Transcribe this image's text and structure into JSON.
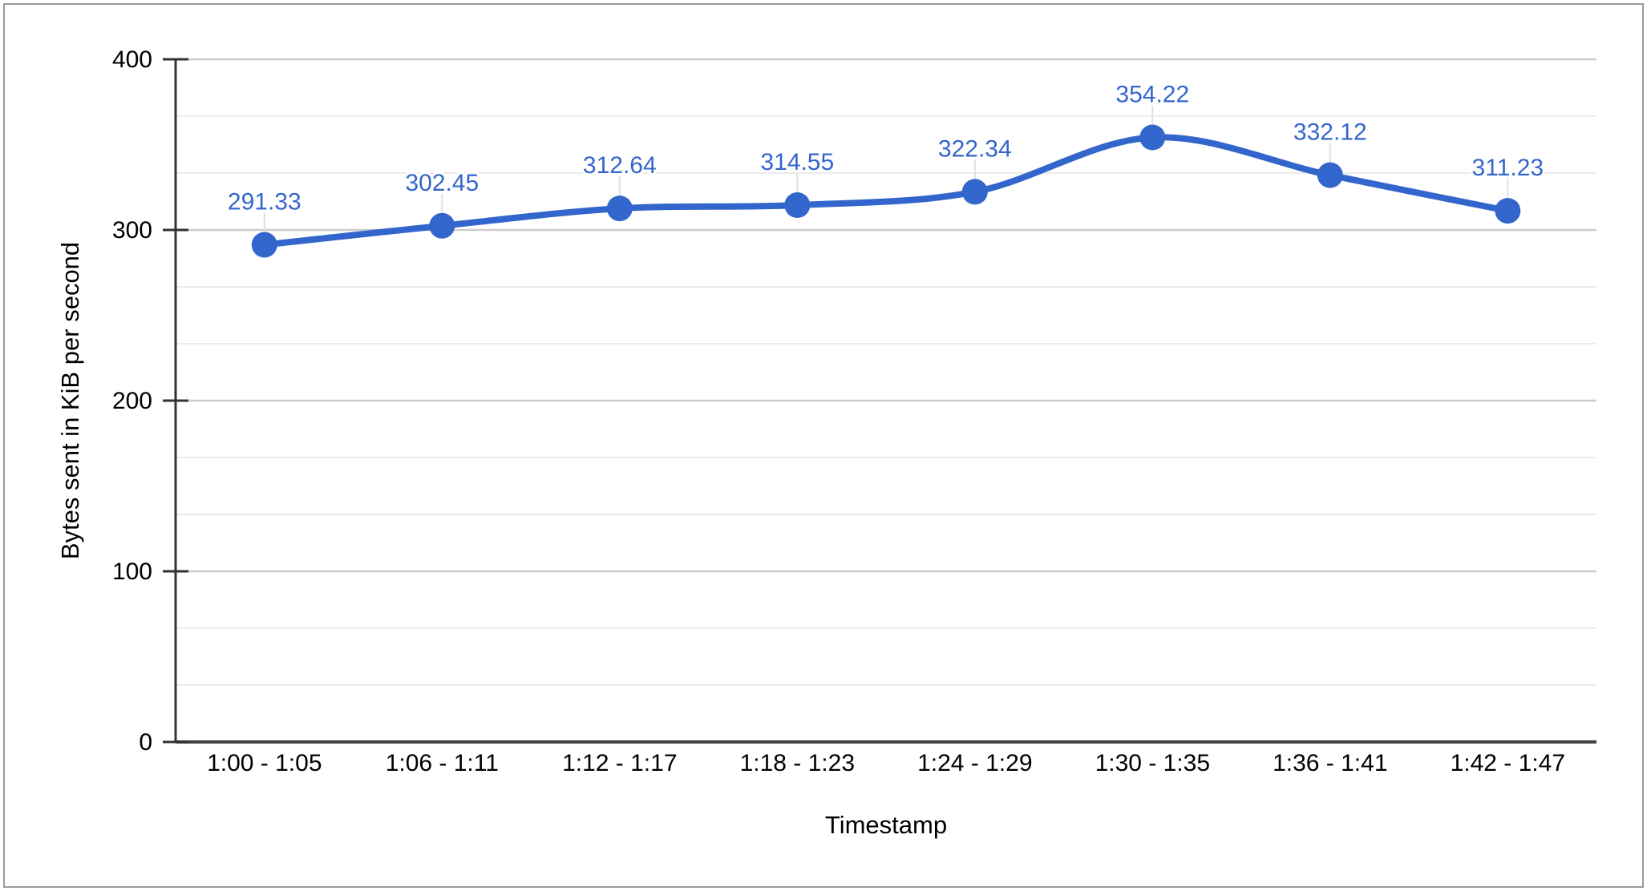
{
  "chart_data": {
    "type": "line",
    "title": "",
    "categories": [
      "1:00 - 1:05",
      "1:06 - 1:11",
      "1:12 - 1:17",
      "1:18 - 1:23",
      "1:24 - 1:29",
      "1:30 - 1:35",
      "1:36 - 1:41",
      "1:42 - 1:47"
    ],
    "values": [
      291.33,
      302.45,
      312.64,
      314.55,
      322.34,
      354.22,
      332.12,
      311.23
    ],
    "data_labels": [
      "291.33",
      "302.45",
      "312.64",
      "314.55",
      "322.34",
      "354.22",
      "332.12",
      "311.23"
    ],
    "xlabel": "Timestamp",
    "ylabel": "Bytes sent in KiB per second",
    "ylim": [
      0,
      400
    ],
    "y_major_ticks": [
      0,
      100,
      200,
      300,
      400
    ],
    "y_major_tick_labels": [
      "0",
      "100",
      "200",
      "300",
      "400"
    ],
    "y_minor_divisions": 3,
    "grid": true,
    "legend": "none",
    "smooth": true
  },
  "colors": {
    "series": "#3366cc",
    "data_label": "#3366cc",
    "major_grid": "#cccccc",
    "minor_grid": "#ebebeb",
    "axis_line": "#333333",
    "baseline": "#424242",
    "tick_text": "#000000",
    "leader_line": "#e0e0e0",
    "page_border": "#9a9a9a"
  }
}
